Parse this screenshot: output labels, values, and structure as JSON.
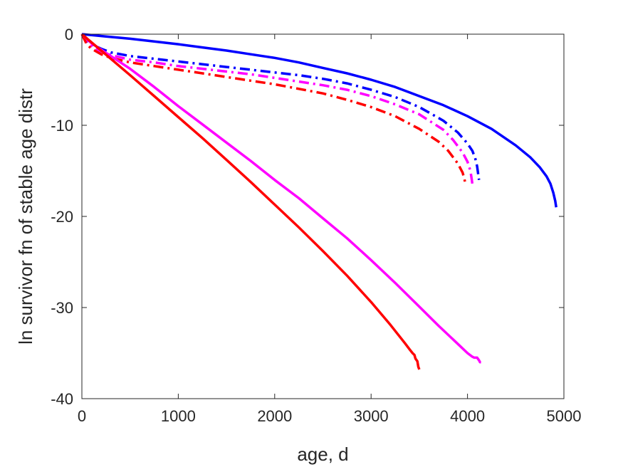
{
  "chart_data": {
    "type": "line",
    "title": "",
    "xlabel": "age, d",
    "ylabel": "ln survivor fn of stable age distr",
    "xlim": [
      0,
      5000
    ],
    "ylim": [
      -40,
      0
    ],
    "xticks": [
      0,
      1000,
      2000,
      3000,
      4000,
      5000
    ],
    "yticks": [
      0,
      -10,
      -20,
      -30,
      -40
    ],
    "xtick_labels": [
      "0",
      "1000",
      "2000",
      "3000",
      "4000",
      "5000"
    ],
    "ytick_labels": [
      "0",
      "-10",
      "-20",
      "-30",
      "-40"
    ],
    "grid": false,
    "legend": "none",
    "series": [
      {
        "color": "#0000ff",
        "style": "solid",
        "x": [
          0,
          250,
          500,
          750,
          1000,
          1250,
          1500,
          1750,
          2000,
          2250,
          2500,
          2750,
          3000,
          3250,
          3500,
          3750,
          4000,
          4250,
          4500,
          4650,
          4750,
          4820,
          4860,
          4890,
          4910,
          4920
        ],
        "y": [
          0,
          -0.25,
          -0.5,
          -0.8,
          -1.1,
          -1.45,
          -1.8,
          -2.2,
          -2.6,
          -3.1,
          -3.7,
          -4.3,
          -5.0,
          -5.8,
          -6.8,
          -7.8,
          -9.0,
          -10.4,
          -12.2,
          -13.5,
          -14.6,
          -15.6,
          -16.4,
          -17.4,
          -18.3,
          -19.0
        ]
      },
      {
        "color": "#0000ff",
        "style": "dashdot",
        "x": [
          0,
          50,
          100,
          200,
          300,
          500,
          750,
          1000,
          1250,
          1500,
          1750,
          2000,
          2250,
          2500,
          2750,
          3000,
          3250,
          3500,
          3750,
          3900,
          4000,
          4050,
          4080,
          4100,
          4110,
          4120
        ],
        "y": [
          0,
          -0.7,
          -1.1,
          -1.6,
          -2.0,
          -2.4,
          -2.7,
          -3.0,
          -3.3,
          -3.6,
          -3.9,
          -4.2,
          -4.5,
          -4.9,
          -5.4,
          -6.1,
          -6.9,
          -8.0,
          -9.5,
          -10.8,
          -12.0,
          -12.8,
          -13.6,
          -14.5,
          -15.3,
          -16.0
        ]
      },
      {
        "color": "#ff00ff",
        "style": "dashdot",
        "x": [
          0,
          50,
          100,
          200,
          300,
          500,
          750,
          1000,
          1250,
          1500,
          1750,
          2000,
          2250,
          2500,
          2750,
          3000,
          3250,
          3500,
          3750,
          3850,
          3950,
          4000,
          4030,
          4045,
          4055
        ],
        "y": [
          0,
          -0.9,
          -1.3,
          -1.9,
          -2.3,
          -2.8,
          -3.1,
          -3.5,
          -3.8,
          -4.1,
          -4.4,
          -4.8,
          -5.2,
          -5.6,
          -6.1,
          -6.8,
          -7.7,
          -8.8,
          -10.5,
          -11.6,
          -13.0,
          -14.0,
          -15.0,
          -16.0,
          -16.8
        ]
      },
      {
        "color": "#ff0000",
        "style": "dashdot",
        "x": [
          0,
          50,
          100,
          200,
          300,
          500,
          750,
          1000,
          1250,
          1500,
          1750,
          2000,
          2250,
          2500,
          2750,
          3000,
          3250,
          3500,
          3700,
          3800,
          3900,
          3950,
          3975
        ],
        "y": [
          0,
          -1.1,
          -1.6,
          -2.2,
          -2.6,
          -3.1,
          -3.5,
          -3.9,
          -4.3,
          -4.7,
          -5.1,
          -5.5,
          -6.0,
          -6.5,
          -7.2,
          -8.0,
          -9.0,
          -10.4,
          -11.8,
          -12.8,
          -14.2,
          -15.2,
          -16.2
        ]
      },
      {
        "color": "#ff00ff",
        "style": "solid",
        "x": [
          0,
          50,
          100,
          200,
          300,
          500,
          750,
          1000,
          1250,
          1500,
          1750,
          2000,
          2250,
          2500,
          2750,
          3000,
          3250,
          3500,
          3700,
          3900,
          4000,
          4050,
          4070,
          4100,
          4120,
          4130,
          4140
        ],
        "y": [
          0,
          -0.5,
          -1.0,
          -1.7,
          -2.4,
          -3.8,
          -5.8,
          -7.9,
          -9.9,
          -11.9,
          -13.9,
          -16.0,
          -18.0,
          -20.2,
          -22.4,
          -24.8,
          -27.3,
          -29.9,
          -32.0,
          -34.0,
          -35.0,
          -35.4,
          -35.5,
          -35.5,
          -35.8,
          -36.0,
          -36.0
        ]
      },
      {
        "color": "#ff0000",
        "style": "solid",
        "x": [
          0,
          100,
          200,
          300,
          500,
          750,
          1000,
          1250,
          1500,
          1750,
          2000,
          2250,
          2500,
          2750,
          3000,
          3200,
          3350,
          3400,
          3430,
          3450,
          3460,
          3480,
          3490,
          3500
        ],
        "y": [
          0,
          -0.9,
          -1.8,
          -2.7,
          -4.5,
          -6.8,
          -9.1,
          -11.4,
          -13.8,
          -16.2,
          -18.7,
          -21.2,
          -23.8,
          -26.5,
          -29.4,
          -31.9,
          -33.9,
          -34.6,
          -35.0,
          -35.2,
          -35.6,
          -35.9,
          -36.5,
          -36.8
        ]
      }
    ]
  }
}
